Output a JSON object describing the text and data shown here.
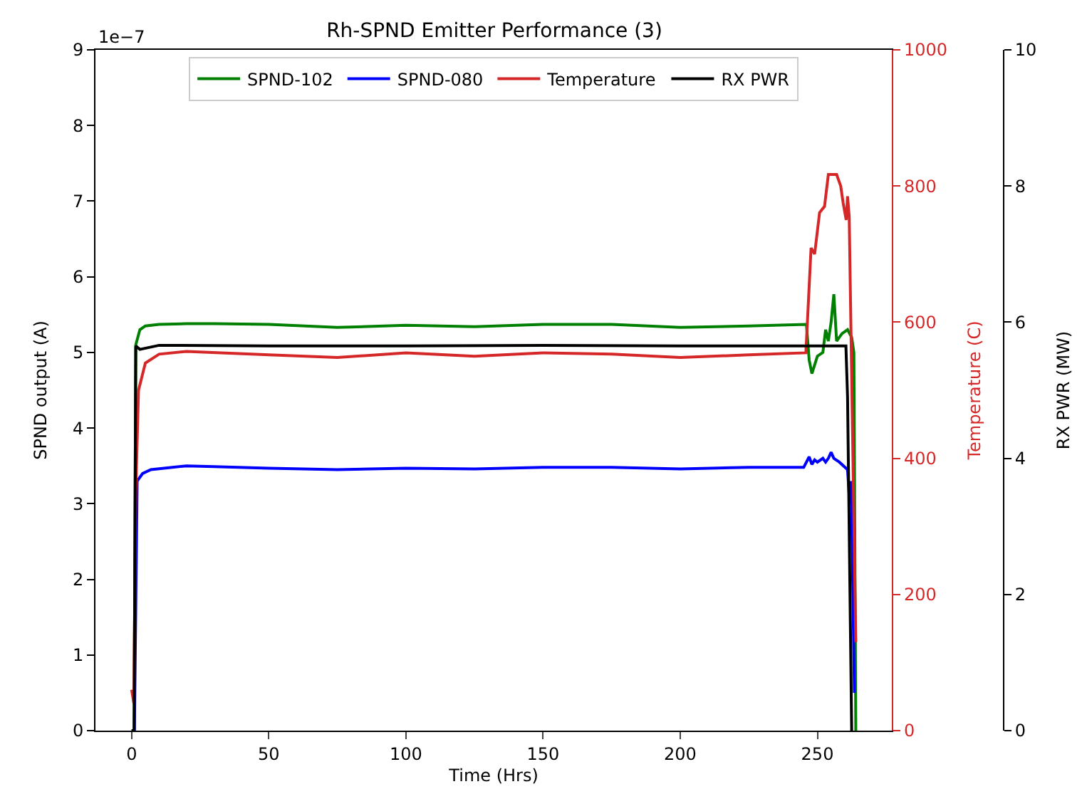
{
  "chart_data": {
    "type": "line",
    "title": "Rh-SPND Emitter Performance (3)",
    "xlabel": "Time (Hrs)",
    "ylabel": "SPND output (A)",
    "y2label": "Temperature (C)",
    "y3label": "RX PWR (MW)",
    "annotations": [
      "1e−7"
    ],
    "xlim": [
      -13.2,
      277.2
    ],
    "xticks": [
      0,
      50,
      100,
      150,
      200,
      250
    ],
    "ylim": [
      0,
      9
    ],
    "yticks": [
      0,
      1,
      2,
      3,
      4,
      5,
      6,
      7,
      8,
      9
    ],
    "y2lim": [
      0,
      1000
    ],
    "y2ticks": [
      0,
      200,
      400,
      600,
      800,
      1000
    ],
    "y3lim": [
      0,
      10
    ],
    "y3ticks": [
      0,
      2,
      4,
      6,
      8,
      10
    ],
    "legend": "top",
    "line_style": "solid",
    "marker": "none",
    "series": [
      {
        "name": "SPND-102",
        "color": "#008000",
        "x": [
          0,
          0.9,
          1.5,
          3,
          5,
          10,
          20,
          30,
          50,
          75,
          100,
          125,
          150,
          175,
          200,
          225,
          246,
          247,
          248,
          250,
          252,
          253,
          254,
          255,
          256,
          257,
          258,
          259,
          261,
          262.5,
          263.3,
          264
        ],
        "values": [
          0,
          0,
          5.1,
          5.3,
          5.35,
          5.37,
          5.38,
          5.38,
          5.37,
          5.33,
          5.36,
          5.34,
          5.37,
          5.37,
          5.33,
          5.35,
          5.37,
          4.9,
          4.72,
          4.95,
          5.0,
          5.3,
          5.15,
          5.4,
          5.77,
          5.15,
          5.2,
          5.25,
          5.3,
          5.2,
          5.0,
          0
        ]
      },
      {
        "name": "SPND-080",
        "color": "#0000ff",
        "x": [
          0,
          1,
          2,
          4,
          7,
          20,
          30,
          50,
          75,
          100,
          125,
          150,
          175,
          200,
          225,
          245,
          247,
          248,
          249,
          250,
          252,
          253,
          254,
          255,
          256,
          258,
          261,
          261.8,
          262.3,
          263.5
        ],
        "values": [
          0,
          0,
          3.3,
          3.4,
          3.45,
          3.5,
          3.49,
          3.47,
          3.45,
          3.47,
          3.46,
          3.48,
          3.48,
          3.46,
          3.48,
          3.48,
          3.62,
          3.52,
          3.58,
          3.55,
          3.6,
          3.55,
          3.6,
          3.68,
          3.6,
          3.55,
          3.45,
          3.0,
          3.3,
          0.5
        ]
      },
      {
        "name": "Temperature",
        "color": "#d62728",
        "axis": "y2",
        "x": [
          0,
          0.8,
          1.5,
          2.5,
          5,
          10,
          20,
          50,
          75,
          100,
          125,
          150,
          175,
          200,
          225,
          245.8,
          247.7,
          249,
          250.8,
          252.6,
          254,
          257,
          258.5,
          259.4,
          260.5,
          261,
          261.6,
          264
        ],
        "values": [
          60,
          40,
          350,
          500,
          540,
          553,
          557,
          552,
          548,
          555,
          550,
          555,
          553,
          548,
          552,
          555,
          709,
          700,
          761,
          770,
          817,
          817,
          800,
          775,
          750,
          785,
          755,
          130
        ]
      },
      {
        "name": "RX PWR",
        "color": "#000000",
        "axis": "y3",
        "x": [
          0,
          0.9,
          1.5,
          3,
          10,
          50,
          100,
          150,
          200,
          250,
          260.4,
          261,
          262.5
        ],
        "values": [
          0,
          0,
          5.65,
          5.6,
          5.66,
          5.65,
          5.65,
          5.66,
          5.65,
          5.65,
          5.65,
          4.9,
          0
        ]
      }
    ]
  }
}
